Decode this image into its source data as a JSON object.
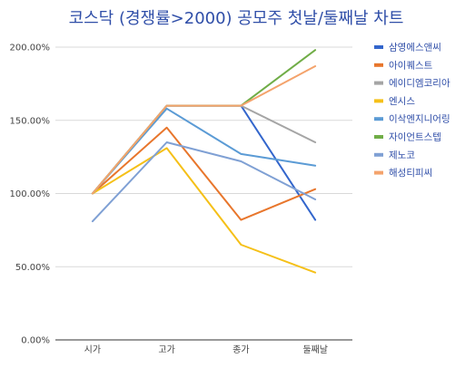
{
  "chart_data": {
    "type": "line",
    "title": "코스닥 (경쟁률>2000) 공모주 첫날/둘째날 차트",
    "xlabel": "",
    "ylabel": "",
    "categories": [
      "시가",
      "고가",
      "종가",
      "둘째날"
    ],
    "ylim": [
      0,
      200
    ],
    "y_ticks": [
      "0.00%",
      "50.00%",
      "100.00%",
      "150.00%",
      "200.00%"
    ],
    "grid": true,
    "legend_position": "right",
    "series": [
      {
        "name": "삼영에스앤씨",
        "color": "#3366cc",
        "values": [
          100,
          160,
          160,
          82
        ]
      },
      {
        "name": "아이퀘스트",
        "color": "#e8762c",
        "values": [
          100,
          145,
          82,
          103
        ]
      },
      {
        "name": "에이디엠코리아",
        "color": "#a5a5a5",
        "values": [
          100,
          160,
          160,
          135
        ]
      },
      {
        "name": "엔시스",
        "color": "#f5c018",
        "values": [
          100,
          131,
          65,
          46
        ]
      },
      {
        "name": "이삭엔지니어링",
        "color": "#5b9bd5",
        "values": [
          100,
          158,
          127,
          119
        ]
      },
      {
        "name": "자이언트스텝",
        "color": "#70ad47",
        "values": [
          100,
          160,
          160,
          198
        ]
      },
      {
        "name": "제노코",
        "color": "#7fa0d4",
        "values": [
          81,
          135,
          122,
          96
        ]
      },
      {
        "name": "해성티피씨",
        "color": "#f4a36c",
        "values": [
          100,
          160,
          160,
          187
        ]
      }
    ]
  }
}
